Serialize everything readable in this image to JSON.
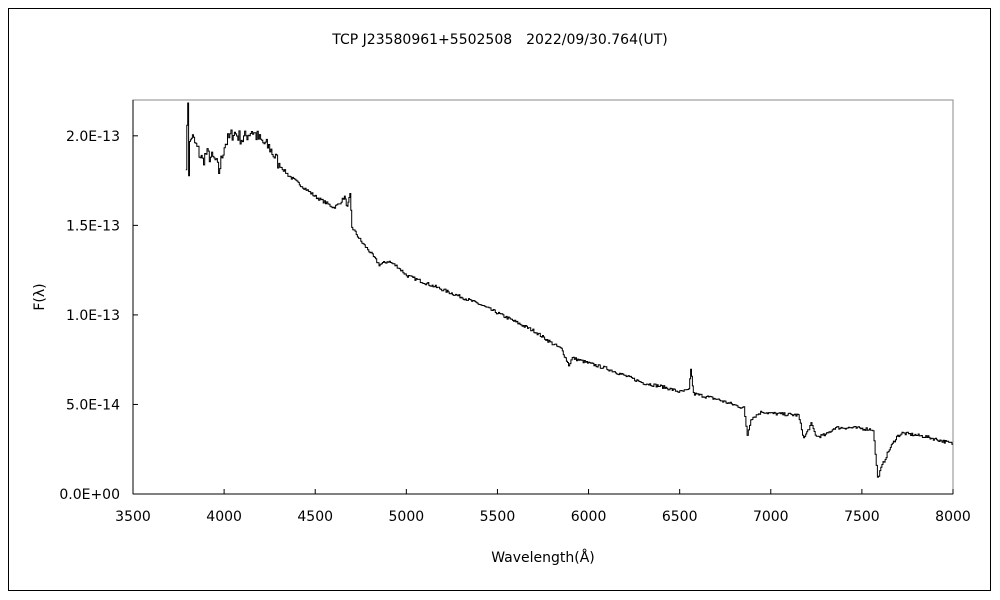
{
  "chart_data": {
    "type": "line",
    "title": "TCP J23580961+5502508　2022/09/30.764(UT)",
    "xlabel": "Wavelength(Å)",
    "ylabel": "F(λ)",
    "xlim": [
      3500,
      8000
    ],
    "ylim": [
      0,
      2.2e-13
    ],
    "grid": false,
    "xticks": [
      3500,
      4000,
      4500,
      5000,
      5500,
      6000,
      6500,
      7000,
      7500,
      8000
    ],
    "xtick_labels": [
      "3500",
      "4000",
      "4500",
      "5000",
      "5500",
      "6000",
      "6500",
      "7000",
      "7500",
      "8000"
    ],
    "yticks": [
      0,
      5e-14,
      1e-13,
      1.5e-13,
      2e-13
    ],
    "ytick_labels": [
      "0.0E+00",
      "5.0E-14",
      "1.0E-13",
      "1.5E-13",
      "2.0E-13"
    ],
    "series": [
      {
        "name": "spectrum",
        "unit": "1e-13",
        "points": [
          [
            3790,
            1.85
          ],
          [
            3800,
            2.2
          ],
          [
            3805,
            1.8
          ],
          [
            3810,
            1.95
          ],
          [
            3820,
            2.0
          ],
          [
            3850,
            1.93
          ],
          [
            3880,
            1.86
          ],
          [
            3900,
            1.9
          ],
          [
            3950,
            1.86
          ],
          [
            3970,
            1.8
          ],
          [
            4000,
            1.95
          ],
          [
            4050,
            2.02
          ],
          [
            4100,
            1.98
          ],
          [
            4150,
            2.03
          ],
          [
            4200,
            1.97
          ],
          [
            4250,
            1.93
          ],
          [
            4300,
            1.84
          ],
          [
            4350,
            1.78
          ],
          [
            4400,
            1.74
          ],
          [
            4450,
            1.7
          ],
          [
            4500,
            1.66
          ],
          [
            4550,
            1.63
          ],
          [
            4600,
            1.6
          ],
          [
            4630,
            1.62
          ],
          [
            4660,
            1.66
          ],
          [
            4675,
            1.6
          ],
          [
            4690,
            1.67
          ],
          [
            4700,
            1.49
          ],
          [
            4750,
            1.41
          ],
          [
            4800,
            1.35
          ],
          [
            4850,
            1.28
          ],
          [
            4900,
            1.3
          ],
          [
            4950,
            1.27
          ],
          [
            5000,
            1.22
          ],
          [
            5100,
            1.18
          ],
          [
            5200,
            1.14
          ],
          [
            5300,
            1.1
          ],
          [
            5400,
            1.06
          ],
          [
            5500,
            1.01
          ],
          [
            5600,
            0.96
          ],
          [
            5700,
            0.91
          ],
          [
            5800,
            0.84
          ],
          [
            5850,
            0.81
          ],
          [
            5890,
            0.72
          ],
          [
            5910,
            0.76
          ],
          [
            6000,
            0.73
          ],
          [
            6100,
            0.7
          ],
          [
            6200,
            0.66
          ],
          [
            6300,
            0.62
          ],
          [
            6400,
            0.6
          ],
          [
            6500,
            0.57
          ],
          [
            6550,
            0.58
          ],
          [
            6560,
            0.7
          ],
          [
            6575,
            0.56
          ],
          [
            6700,
            0.53
          ],
          [
            6850,
            0.48
          ],
          [
            6870,
            0.33
          ],
          [
            6890,
            0.42
          ],
          [
            6950,
            0.46
          ],
          [
            7000,
            0.45
          ],
          [
            7150,
            0.44
          ],
          [
            7180,
            0.31
          ],
          [
            7220,
            0.39
          ],
          [
            7250,
            0.32
          ],
          [
            7300,
            0.33
          ],
          [
            7350,
            0.37
          ],
          [
            7450,
            0.37
          ],
          [
            7560,
            0.36
          ],
          [
            7585,
            0.09
          ],
          [
            7610,
            0.16
          ],
          [
            7650,
            0.25
          ],
          [
            7690,
            0.32
          ],
          [
            7720,
            0.34
          ],
          [
            7850,
            0.32
          ],
          [
            8000,
            0.28
          ]
        ]
      }
    ]
  }
}
